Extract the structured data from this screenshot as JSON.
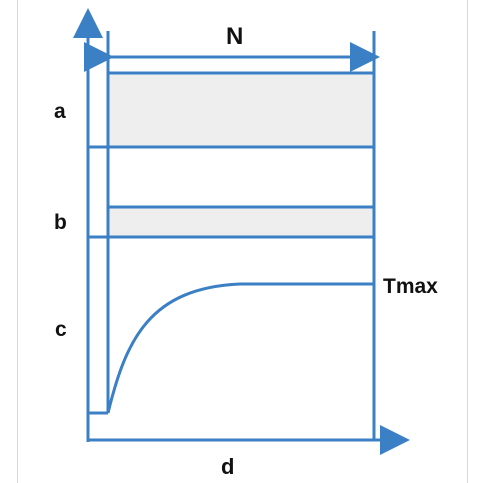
{
  "diagram": {
    "labels": {
      "width": "N",
      "zone_a": "a",
      "zone_b": "b",
      "zone_c": "c",
      "curve_max": "Tmax",
      "axis_x": "d"
    },
    "colors": {
      "line": "#3b7fc5",
      "band_fill": "#eeeeee",
      "frame": "#d7d7d7",
      "text": "#111111"
    }
  }
}
